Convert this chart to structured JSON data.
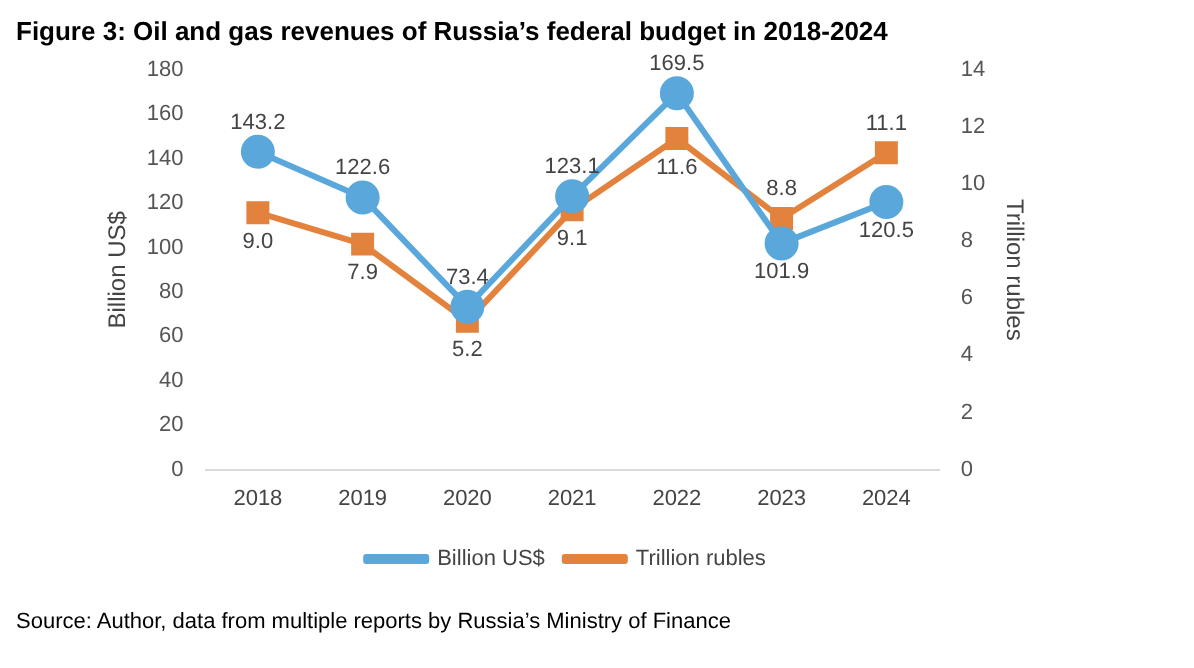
{
  "chart_data": {
    "type": "line",
    "title": "Figure 3: Oil and gas revenues of Russia’s federal budget in 2018-2024",
    "ylabel": "Billion US$",
    "y2label": "Trillion rubles",
    "categories": [
      "2018",
      "2019",
      "2020",
      "2021",
      "2022",
      "2023",
      "2024"
    ],
    "series": [
      {
        "name": "Billion US$",
        "color": "#5aa7dc",
        "marker": "circle",
        "values": [
          143.2,
          122.6,
          73.4,
          123.1,
          169.5,
          101.9,
          120.5
        ],
        "value_labels": [
          "143.2",
          "122.6",
          "73.4",
          "123.1",
          "169.5",
          "101.9",
          "120.5"
        ]
      },
      {
        "name": "Trillion rubles",
        "color": "#e2823c",
        "marker": "square",
        "axis": "y2",
        "values": [
          9.0,
          7.9,
          5.2,
          9.1,
          11.6,
          8.8,
          11.1
        ],
        "value_labels": [
          "9.0",
          "7.9",
          "5.2",
          "9.1",
          "11.6",
          "8.8",
          "11.1"
        ]
      }
    ],
    "ylim": [
      0,
      180
    ],
    "yticks": [
      0,
      20,
      40,
      60,
      80,
      100,
      120,
      140,
      160,
      180
    ],
    "y2lim": [
      0,
      14
    ],
    "y2ticks": [
      0,
      2,
      4,
      6,
      8,
      10,
      12,
      14
    ],
    "grid": false,
    "legend": "bottom",
    "annotations": [
      "Source: Author, data from multiple reports by Russia’s Ministry of Finance"
    ]
  }
}
